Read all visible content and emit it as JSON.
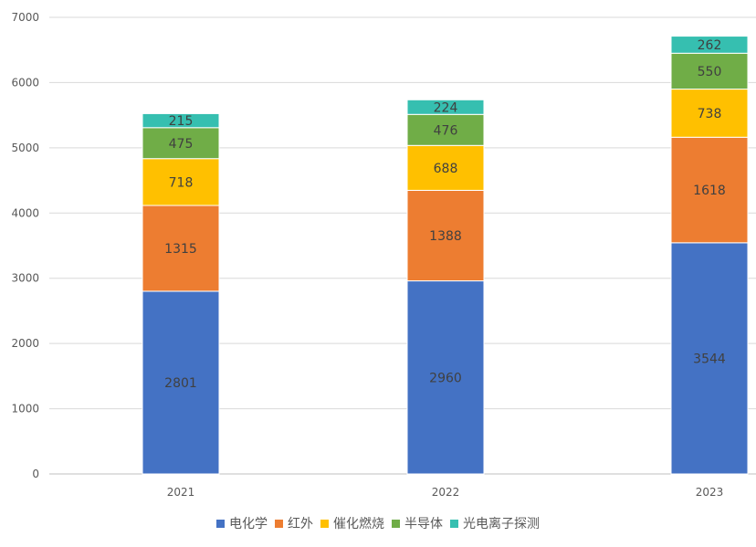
{
  "chart_data": {
    "type": "bar",
    "stacked": true,
    "categories": [
      "2021",
      "2022",
      "2023"
    ],
    "series": [
      {
        "name": "电化学",
        "color": "#4472C4",
        "values": [
          2801,
          2960,
          3544
        ]
      },
      {
        "name": "红外",
        "color": "#ED7D31",
        "values": [
          1315,
          1388,
          1618
        ]
      },
      {
        "name": "催化燃烧",
        "color": "#FFC000",
        "values": [
          718,
          688,
          738
        ]
      },
      {
        "name": "半导体",
        "color": "#70AD47",
        "values": [
          475,
          476,
          550
        ]
      },
      {
        "name": "光电离子探测",
        "color": "#36BFB0",
        "values": [
          215,
          224,
          262
        ]
      }
    ],
    "ylim": [
      0,
      7000
    ],
    "yticks": [
      0,
      1000,
      2000,
      3000,
      4000,
      5000,
      6000,
      7000
    ],
    "grid": true,
    "legend_position": "bottom",
    "data_labels": true
  }
}
